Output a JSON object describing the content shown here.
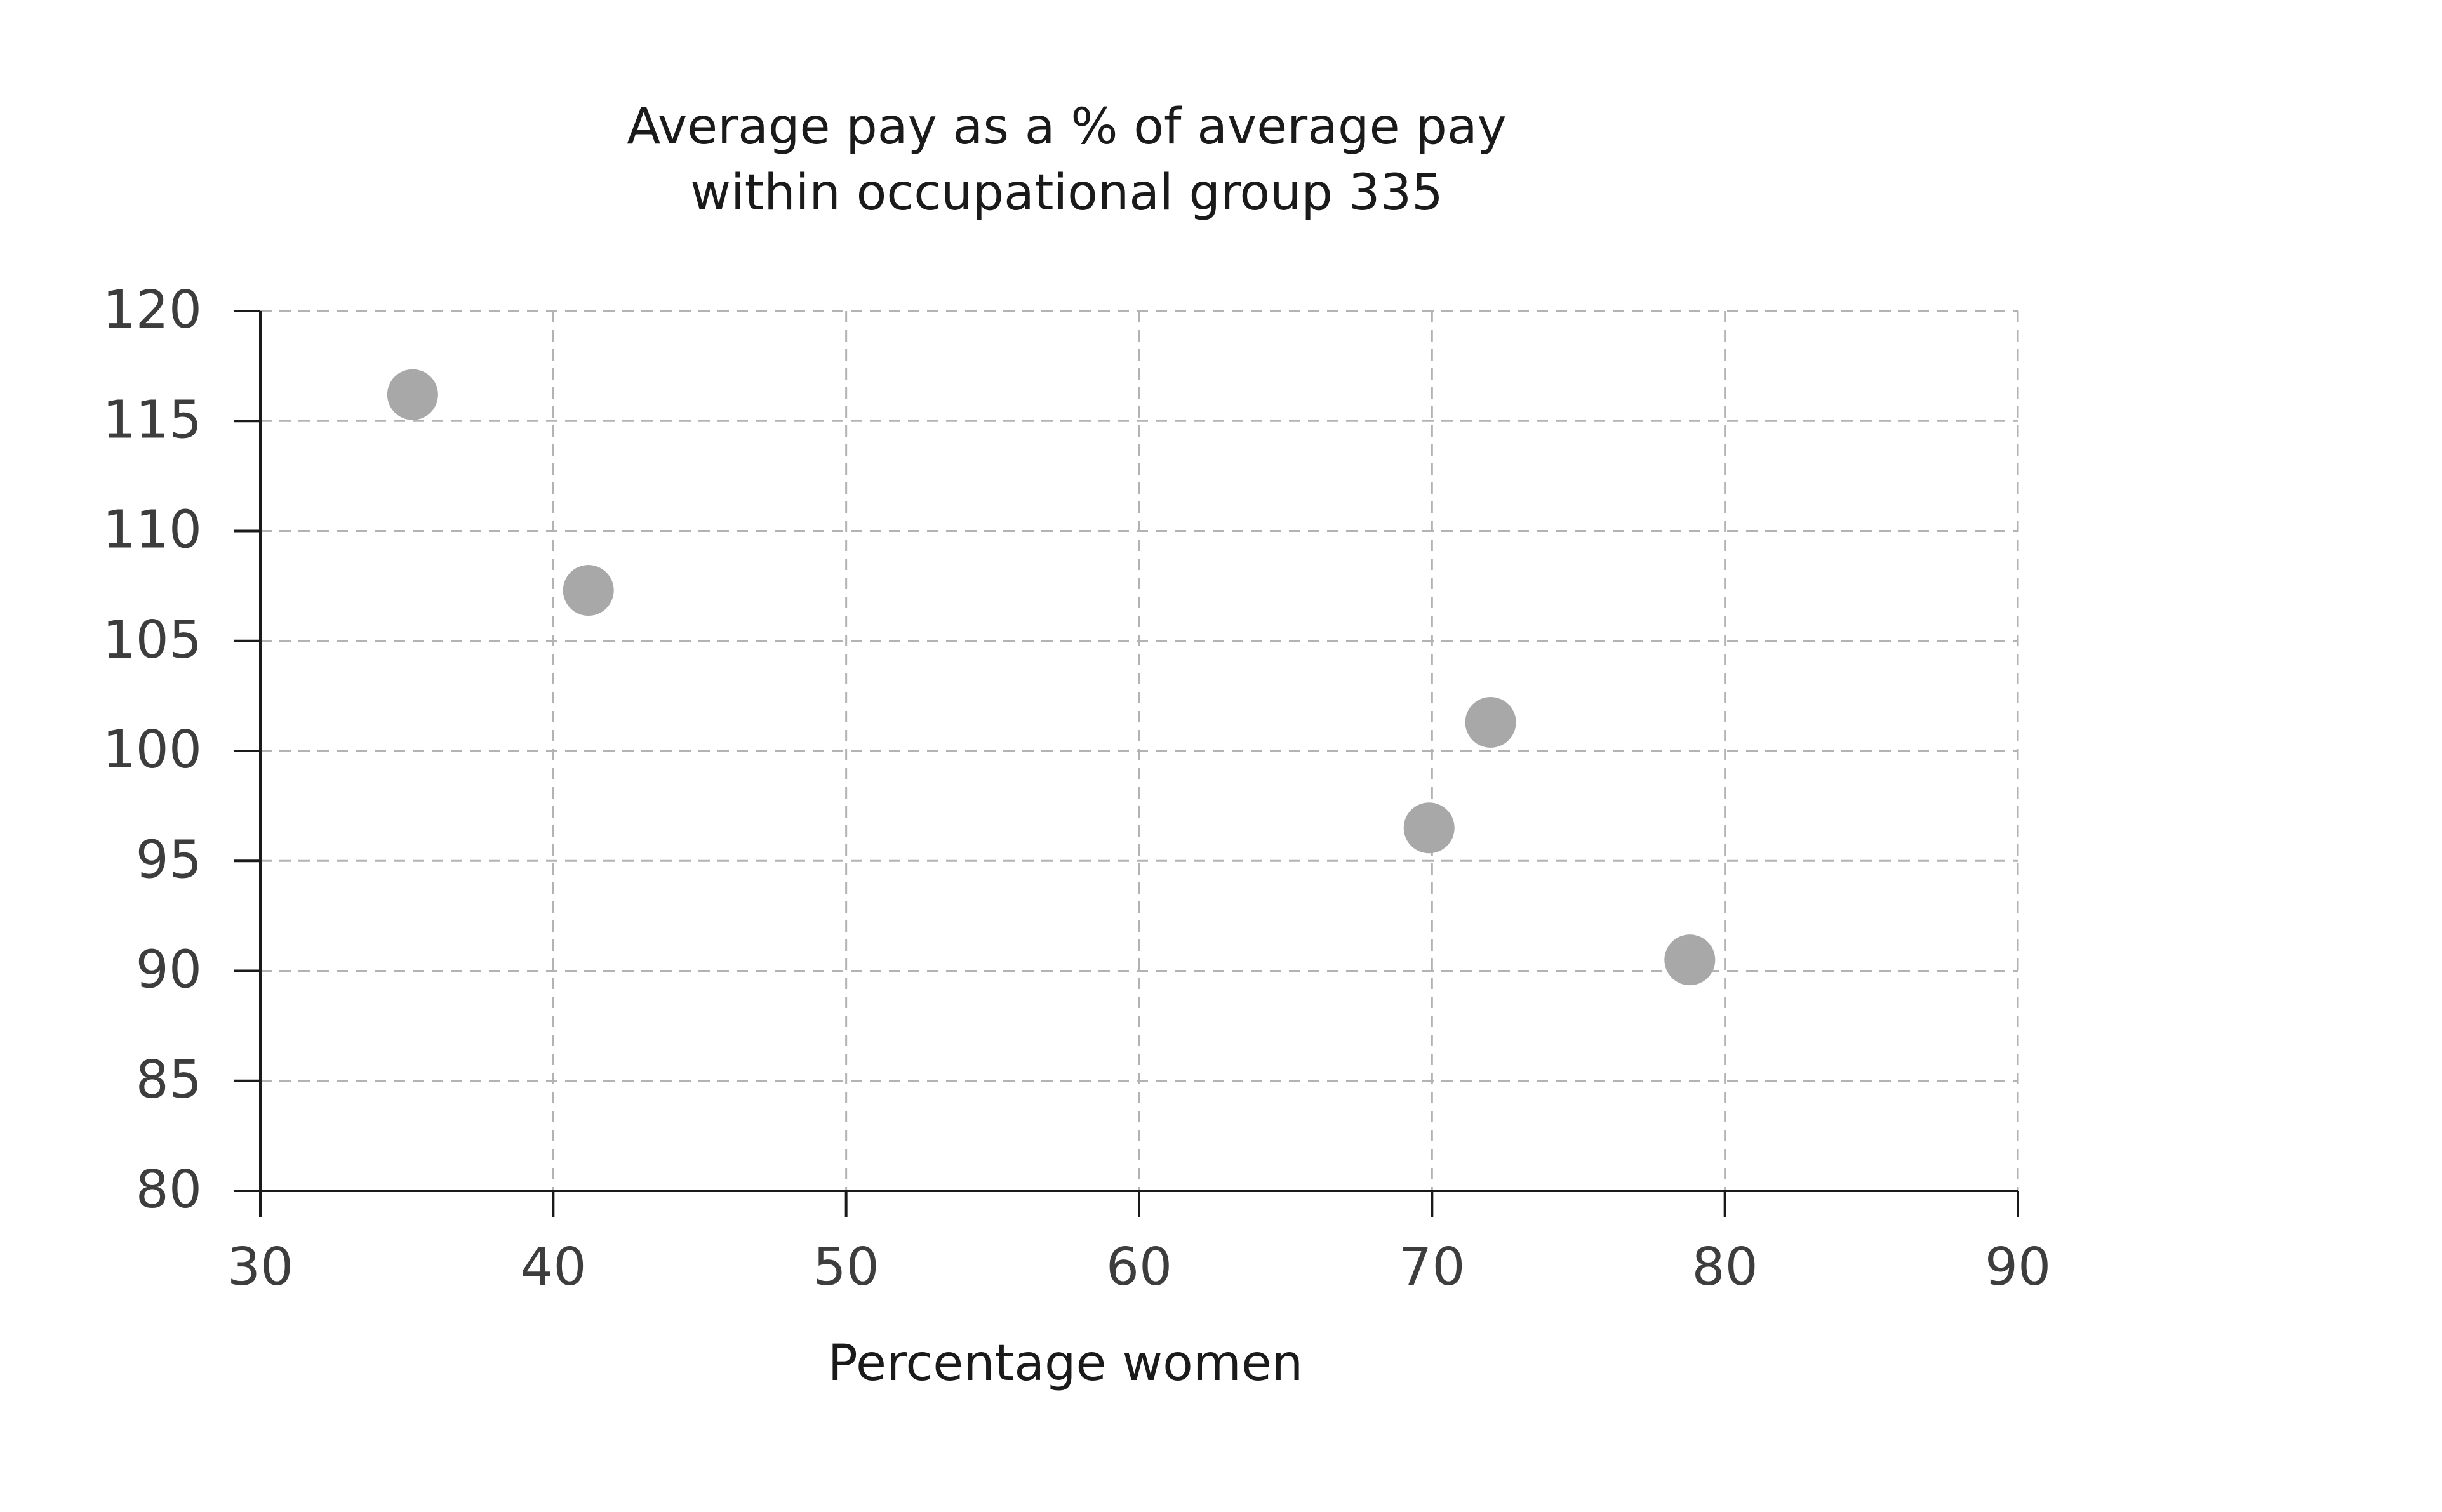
{
  "chart_data": {
    "type": "scatter",
    "title_lines": [
      "Average pay as a % of average pay",
      "within occupational group 335"
    ],
    "xlabel": "Percentage women",
    "ylabel": "",
    "xlim": [
      30,
      90
    ],
    "ylim": [
      80,
      120
    ],
    "xticks": [
      30,
      40,
      50,
      60,
      70,
      80,
      90
    ],
    "yticks": [
      80,
      85,
      90,
      95,
      100,
      105,
      110,
      115,
      120
    ],
    "grid": true,
    "point_color": "#a8a8a8",
    "series": [
      {
        "points": [
          {
            "x": 35.2,
            "y": 116.2
          },
          {
            "x": 41.2,
            "y": 107.3
          },
          {
            "x": 72.0,
            "y": 101.3
          },
          {
            "x": 69.9,
            "y": 96.5
          },
          {
            "x": 78.8,
            "y": 90.5
          }
        ]
      }
    ]
  }
}
